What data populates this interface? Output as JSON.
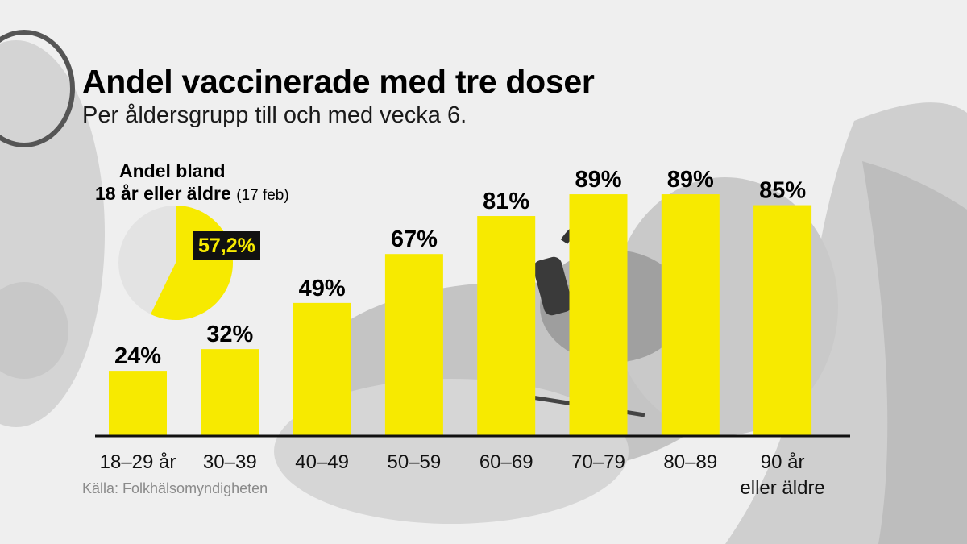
{
  "title": "Andel vaccinerade med tre doser",
  "subtitle": "Per åldersgrupp till och med vecka 6.",
  "source": "Källa: Folkhälsomyndigheten",
  "pie": {
    "title_line1": "Andel bland",
    "title_line2": "18 år eller äldre",
    "date": "(17 feb)",
    "value_label": "57,2%",
    "value": 57.2
  },
  "colors": {
    "bar": "#f7ea00",
    "pie_rest": "#e3e3e3",
    "axis": "#111111"
  },
  "chart_data": {
    "type": "bar",
    "title": "Andel vaccinerade med tre doser",
    "subtitle": "Per åldersgrupp till och med vecka 6.",
    "categories": [
      "18–29 år",
      "30–39",
      "40–49",
      "50–59",
      "60–69",
      "70–79",
      "80–89",
      "90 år eller äldre"
    ],
    "values": [
      24,
      32,
      49,
      67,
      81,
      89,
      89,
      85
    ],
    "value_labels": [
      "24%",
      "32%",
      "49%",
      "67%",
      "81%",
      "89%",
      "89%",
      "85%"
    ],
    "ylim": [
      0,
      100
    ],
    "grid": false
  }
}
